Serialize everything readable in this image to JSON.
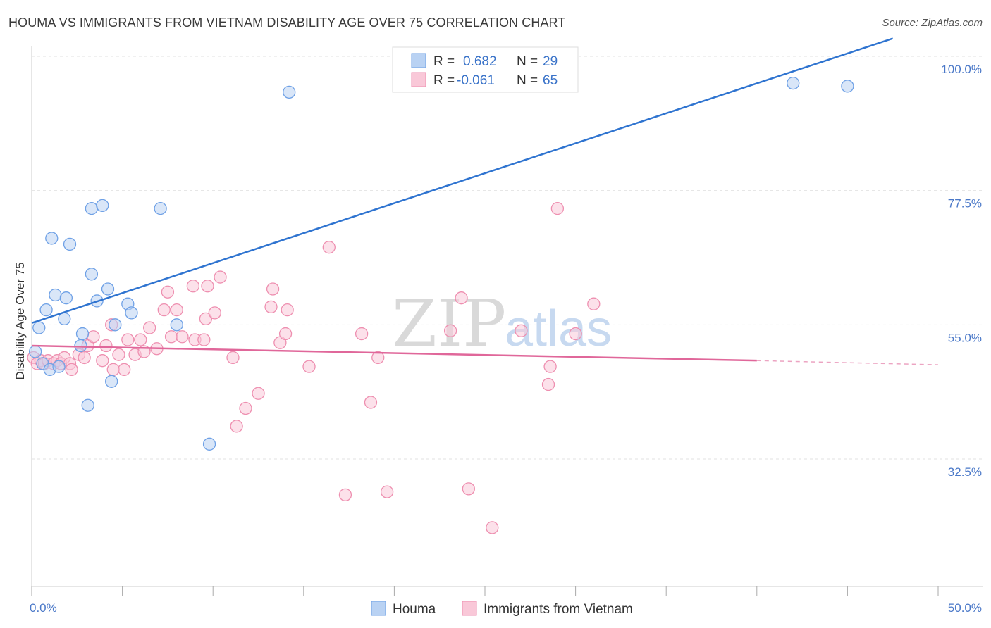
{
  "title": "HOUMA VS IMMIGRANTS FROM VIETNAM DISABILITY AGE OVER 75 CORRELATION CHART",
  "source": "Source: ZipAtlas.com",
  "watermark": {
    "zip": "ZIP",
    "atlas": "atlas"
  },
  "chart_data": {
    "type": "scatter",
    "xlabel": "",
    "ylabel": "Disability Age Over 75",
    "xlim": [
      0,
      50
    ],
    "ylim": [
      14,
      103
    ],
    "x_tick_labels": [
      {
        "value": 0,
        "label": "0.0%"
      },
      {
        "value": 50,
        "label": "50.0%"
      }
    ],
    "x_minor_ticks": [
      0,
      5,
      10,
      15,
      20,
      25,
      30,
      35,
      40,
      45,
      50
    ],
    "y_ticks": [
      {
        "value": 100,
        "label": "100.0%"
      },
      {
        "value": 77.5,
        "label": "77.5%"
      },
      {
        "value": 55,
        "label": "55.0%"
      },
      {
        "value": 32.5,
        "label": "32.5%"
      }
    ],
    "grid": true,
    "legend_position": "top-center",
    "stats": [
      {
        "series": "Houma",
        "r_label": "R =",
        "r": "0.682",
        "n_label": "N =",
        "n": "29"
      },
      {
        "series": "Immigrants from Vietnam",
        "r_label": "R =",
        "r": "-0.061",
        "n_label": "N =",
        "n": "65"
      }
    ],
    "series": [
      {
        "name": "Houma",
        "color": "#6fa1e6",
        "fill": "#b9d2f3",
        "line_color": "#2f74d0",
        "trend": {
          "x0": 0,
          "y0": 55.3,
          "x1": 47.5,
          "y1": 103
        },
        "points": [
          [
            0.2,
            50.5
          ],
          [
            0.4,
            54.5
          ],
          [
            0.6,
            48.5
          ],
          [
            0.8,
            57.5
          ],
          [
            1.0,
            47.5
          ],
          [
            1.1,
            69.5
          ],
          [
            1.3,
            60.0
          ],
          [
            1.5,
            48.0
          ],
          [
            1.8,
            56.0
          ],
          [
            1.9,
            59.5
          ],
          [
            2.1,
            68.5
          ],
          [
            2.7,
            51.5
          ],
          [
            2.8,
            53.5
          ],
          [
            3.1,
            41.5
          ],
          [
            3.3,
            63.5
          ],
          [
            3.3,
            74.5
          ],
          [
            3.6,
            59.0
          ],
          [
            3.9,
            75.0
          ],
          [
            4.2,
            61.0
          ],
          [
            4.4,
            45.5
          ],
          [
            4.6,
            55.0
          ],
          [
            5.3,
            58.5
          ],
          [
            5.5,
            57.0
          ],
          [
            7.1,
            74.5
          ],
          [
            8.0,
            55.0
          ],
          [
            9.8,
            35.0
          ],
          [
            14.2,
            94.0
          ],
          [
            42.0,
            95.5
          ],
          [
            45.0,
            95.0
          ]
        ]
      },
      {
        "name": "Immigrants from Vietnam",
        "color": "#ee8fb0",
        "fill": "#f9c8d8",
        "line_color": "#e0679a",
        "trend": {
          "x0": 0,
          "y0": 51.5,
          "x1": 40,
          "y1": 49.0
        },
        "trend_dashed": {
          "x0": 40,
          "y0": 49.0,
          "x1": 50,
          "y1": 48.3
        },
        "points": [
          [
            0.1,
            49.5
          ],
          [
            0.3,
            48.5
          ],
          [
            0.5,
            49.0
          ],
          [
            0.7,
            48.5
          ],
          [
            0.9,
            49.0
          ],
          [
            1.2,
            48.5
          ],
          [
            1.4,
            49.0
          ],
          [
            1.6,
            48.5
          ],
          [
            1.8,
            49.5
          ],
          [
            2.1,
            48.5
          ],
          [
            2.2,
            47.5
          ],
          [
            2.6,
            50.0
          ],
          [
            2.9,
            49.5
          ],
          [
            3.1,
            51.5
          ],
          [
            3.4,
            53.0
          ],
          [
            3.9,
            49.0
          ],
          [
            4.1,
            51.5
          ],
          [
            4.4,
            55.0
          ],
          [
            4.5,
            47.5
          ],
          [
            4.8,
            50.0
          ],
          [
            5.1,
            47.5
          ],
          [
            5.3,
            52.5
          ],
          [
            5.7,
            50.0
          ],
          [
            6.0,
            52.5
          ],
          [
            6.2,
            50.5
          ],
          [
            6.5,
            54.5
          ],
          [
            6.9,
            51.0
          ],
          [
            7.3,
            57.5
          ],
          [
            7.5,
            60.5
          ],
          [
            7.7,
            53.0
          ],
          [
            8.0,
            57.5
          ],
          [
            8.3,
            53.0
          ],
          [
            8.9,
            61.5
          ],
          [
            9.0,
            52.5
          ],
          [
            9.5,
            52.5
          ],
          [
            9.6,
            56.0
          ],
          [
            9.7,
            61.5
          ],
          [
            10.1,
            57.0
          ],
          [
            10.4,
            63.0
          ],
          [
            11.1,
            49.5
          ],
          [
            11.3,
            38.0
          ],
          [
            11.8,
            41.0
          ],
          [
            12.5,
            43.5
          ],
          [
            13.2,
            58.0
          ],
          [
            13.3,
            61.0
          ],
          [
            13.7,
            52.0
          ],
          [
            14.0,
            53.5
          ],
          [
            14.1,
            57.5
          ],
          [
            15.3,
            48.0
          ],
          [
            16.4,
            68.0
          ],
          [
            17.3,
            26.5
          ],
          [
            18.2,
            53.5
          ],
          [
            18.7,
            42.0
          ],
          [
            19.1,
            49.5
          ],
          [
            19.6,
            27.0
          ],
          [
            23.1,
            54.0
          ],
          [
            23.7,
            59.5
          ],
          [
            24.1,
            27.5
          ],
          [
            25.4,
            21.0
          ],
          [
            27.0,
            54.0
          ],
          [
            28.5,
            45.0
          ],
          [
            28.6,
            48.0
          ],
          [
            29.0,
            74.5
          ],
          [
            30.0,
            53.5
          ],
          [
            31.0,
            58.5
          ]
        ]
      }
    ]
  }
}
